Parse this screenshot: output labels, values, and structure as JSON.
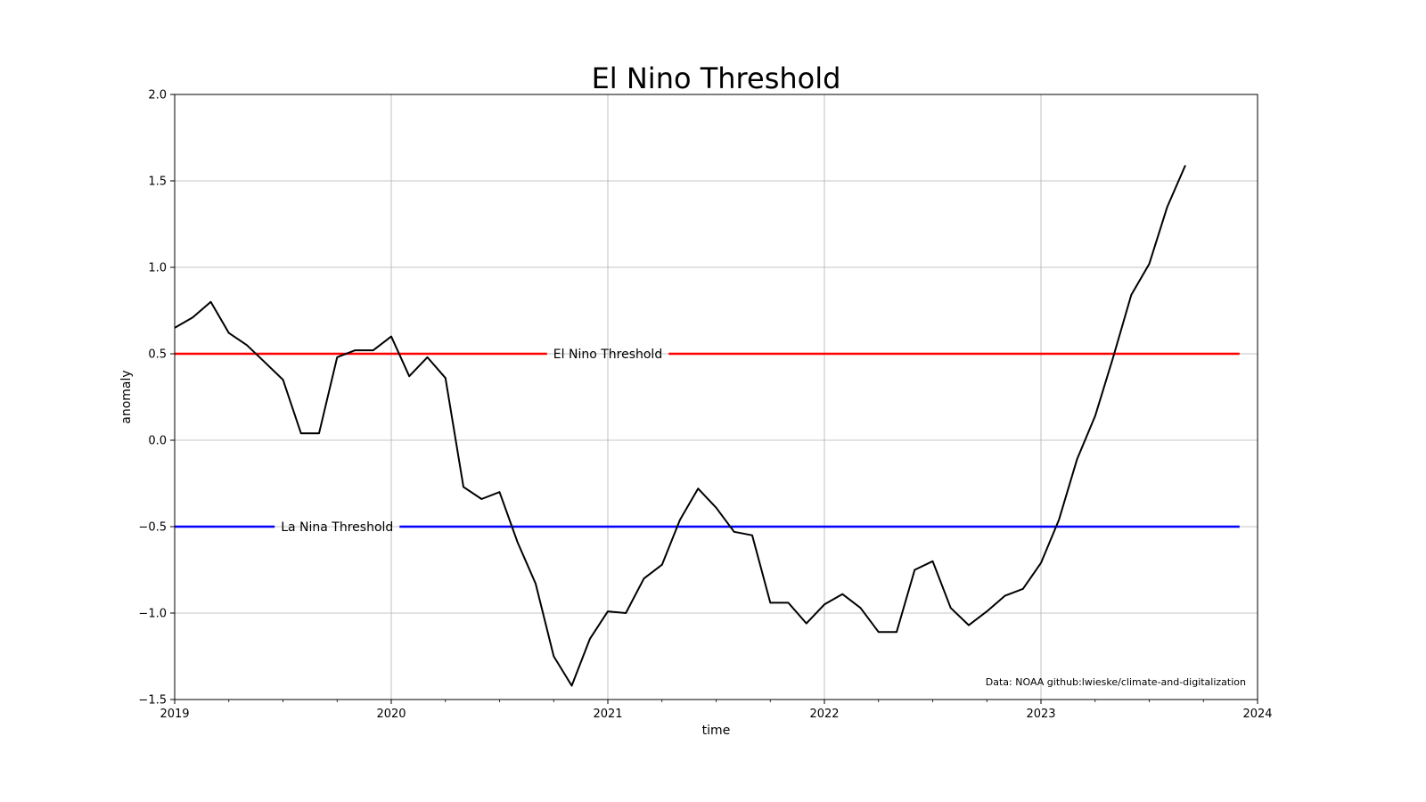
{
  "chart_data": {
    "type": "line",
    "title": "El Nino Threshold",
    "xlabel": "time",
    "ylabel": "anomaly",
    "xlim": [
      2019,
      2024
    ],
    "ylim": [
      -1.5,
      2.0
    ],
    "x_ticks": [
      "2019",
      "2020",
      "2021",
      "2022",
      "2023",
      "2024"
    ],
    "y_ticks": [
      "−1.5",
      "−1.0",
      "−0.5",
      "0.0",
      "0.5",
      "1.0",
      "1.5",
      "2.0"
    ],
    "grid": true,
    "series": [
      {
        "color": "#000000",
        "x": [
          "2019-01",
          "2019-02",
          "2019-03",
          "2019-04",
          "2019-05",
          "2019-06",
          "2019-07",
          "2019-08",
          "2019-09",
          "2019-10",
          "2019-11",
          "2019-12",
          "2020-01",
          "2020-02",
          "2020-03",
          "2020-04",
          "2020-05",
          "2020-06",
          "2020-07",
          "2020-08",
          "2020-09",
          "2020-10",
          "2020-11",
          "2020-12",
          "2021-01",
          "2021-02",
          "2021-03",
          "2021-04",
          "2021-05",
          "2021-06",
          "2021-07",
          "2021-08",
          "2021-09",
          "2021-10",
          "2021-11",
          "2021-12",
          "2022-01",
          "2022-02",
          "2022-03",
          "2022-04",
          "2022-05",
          "2022-06",
          "2022-07",
          "2022-08",
          "2022-09",
          "2022-10",
          "2022-11",
          "2022-12",
          "2023-01",
          "2023-02",
          "2023-03",
          "2023-04",
          "2023-05",
          "2023-06",
          "2023-07",
          "2023-08",
          "2023-09"
        ],
        "values": [
          0.65,
          0.71,
          0.8,
          0.62,
          0.55,
          0.45,
          0.35,
          0.04,
          0.04,
          0.48,
          0.52,
          0.52,
          0.6,
          0.37,
          0.48,
          0.36,
          -0.27,
          -0.34,
          -0.3,
          -0.59,
          -0.83,
          -1.25,
          -1.42,
          -1.15,
          -0.99,
          -1.0,
          -0.8,
          -0.72,
          -0.46,
          -0.28,
          -0.39,
          -0.53,
          -0.55,
          -0.94,
          -0.94,
          -1.06,
          -0.95,
          -0.89,
          -0.97,
          -1.11,
          -1.11,
          -0.75,
          -0.7,
          -0.97,
          -1.07,
          -0.99,
          -0.9,
          -0.86,
          -0.71,
          -0.46,
          -0.11,
          0.14,
          0.48,
          0.84,
          1.02,
          1.35,
          1.59
        ]
      }
    ],
    "thresholds": [
      {
        "label": "El Nino Threshold",
        "value": 0.5,
        "color": "#ff0000",
        "x_start": 2019,
        "x_end": 2023.917,
        "label_at": 2021.0
      },
      {
        "label": "La Nina Threshold",
        "value": -0.5,
        "color": "#0000ff",
        "x_start": 2019,
        "x_end": 2023.917,
        "label_at": 2019.75
      }
    ],
    "annotation": "Data: NOAA   github:lwieske/climate-and-digitalization"
  }
}
